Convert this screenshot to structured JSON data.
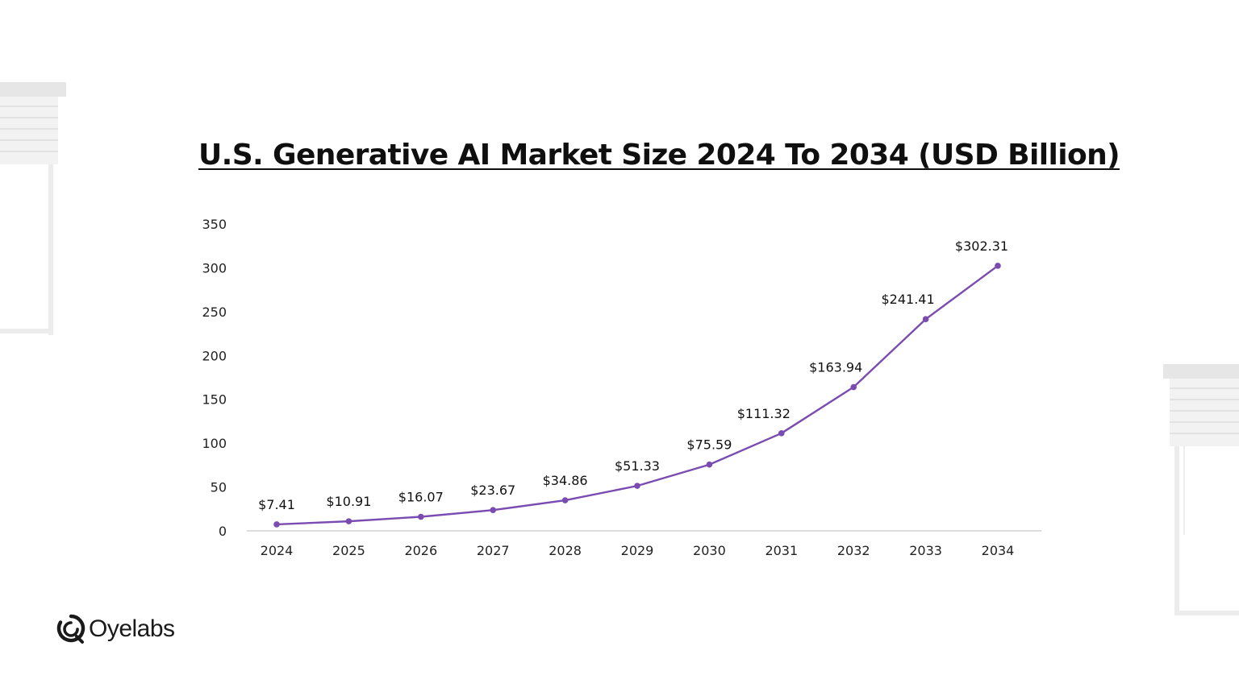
{
  "chart_data": {
    "type": "line",
    "title": "U.S. Generative AI Market Size 2024 To 2034 (USD Billion)",
    "xlabel": "",
    "ylabel": "",
    "categories": [
      "2024",
      "2025",
      "2026",
      "2027",
      "2028",
      "2029",
      "2030",
      "2031",
      "2032",
      "2033",
      "2034"
    ],
    "series": [
      {
        "name": "U.S. Generative AI Market Size",
        "values": [
          7.41,
          10.91,
          16.07,
          23.67,
          34.86,
          51.33,
          75.59,
          111.32,
          163.94,
          241.41,
          302.31
        ],
        "labels": [
          "$7.41",
          "$10.91",
          "$16.07",
          "$23.67",
          "$34.86",
          "$51.33",
          "$75.59",
          "$111.32",
          "$163.94",
          "$241.41",
          "$302.31"
        ]
      }
    ],
    "yticks": [
      "0",
      "50",
      "100",
      "150",
      "200",
      "250",
      "300",
      "350"
    ],
    "ylim": [
      0,
      350
    ],
    "grid": false,
    "color": "#7a4bb0"
  },
  "brand": {
    "name": "Oyelabs"
  }
}
